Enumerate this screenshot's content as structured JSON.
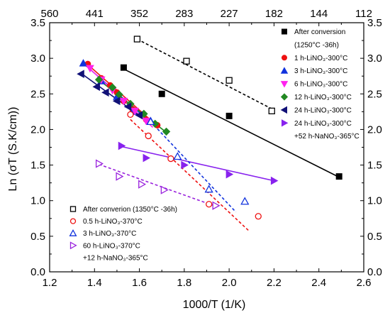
{
  "chart_data": {
    "type": "scatter",
    "xlabel": "1000/T (1/K)",
    "ylabel": "Ln (σT (S.K/cm))",
    "xlim": [
      1.2,
      2.6
    ],
    "ylim": [
      0.0,
      3.5
    ],
    "x_ticks": [
      "1.2",
      "1.4",
      "1.6",
      "1.8",
      "2.0",
      "2.2",
      "2.4",
      "2.6"
    ],
    "y_ticks": [
      "0.0",
      "0.5",
      "1.0",
      "1.5",
      "2.0",
      "2.5",
      "3.0",
      "3.5"
    ],
    "top_axis_ticks": [
      "560",
      "441",
      "352",
      "283",
      "227",
      "182",
      "144",
      "112"
    ],
    "right_axis_ticks": [
      "0.0",
      "0.5",
      "1.0",
      "1.5",
      "2.0",
      "2.5",
      "3.0",
      "3.5"
    ],
    "grid": false,
    "legends": [
      {
        "placement": "top-right",
        "entries": [
          {
            "label": "After conversion",
            "marker": "square",
            "filled": true,
            "color": "#000000"
          },
          {
            "label": "(1250°C -36h)",
            "marker": "none",
            "color": "#000000"
          },
          {
            "label": "1 h-LiNO₃-300°C",
            "marker": "circle",
            "filled": true,
            "color": "#ee1111"
          },
          {
            "label": "3 h-LiNO₃-300°C",
            "marker": "triangle-up",
            "filled": true,
            "color": "#1133dd"
          },
          {
            "label": "6 h-LiNO₃-300°C",
            "marker": "triangle-down",
            "filled": true,
            "color": "#ff22ee"
          },
          {
            "label": "12 h-LiNO₃-300°C",
            "marker": "diamond",
            "filled": true,
            "color": "#228822"
          },
          {
            "label": "24 h-LiNO₃-300°C",
            "marker": "triangle-left",
            "filled": true,
            "color": "#111177"
          },
          {
            "label": "24 h-LiNO₃-300°C",
            "marker": "triangle-right",
            "filled": true,
            "color": "#8822ee"
          },
          {
            "label": "+52 h-NaNO₃-365°C",
            "marker": "none",
            "color": "#000000"
          }
        ]
      },
      {
        "placement": "bottom-left",
        "entries": [
          {
            "label": "After converion (1350°C -36h)",
            "marker": "square",
            "filled": false,
            "color": "#000000"
          },
          {
            "label": "0.5 h-LiNO₃-370°C",
            "marker": "circle",
            "filled": false,
            "color": "#ee1111"
          },
          {
            "label": "3 h-LiNO₃-370°C",
            "marker": "triangle-up",
            "filled": false,
            "color": "#1133dd"
          },
          {
            "label": "60 h-LiNO₃-370°C",
            "marker": "triangle-right",
            "filled": false,
            "color": "#9922dd"
          },
          {
            "label": "+12 h-NaNO₃-365°C",
            "marker": "none",
            "color": "#000000"
          }
        ]
      }
    ],
    "series": [
      {
        "name": "After conversion (1250°C -36h)",
        "marker": "square",
        "filled": true,
        "color": "#000000",
        "dashed": false,
        "x": [
          1.53,
          1.7,
          2.0,
          2.49
        ],
        "y": [
          2.87,
          2.5,
          2.19,
          1.34
        ],
        "fit": [
          [
            1.53,
            2.85
          ],
          [
            2.49,
            1.33
          ]
        ]
      },
      {
        "name": "1 h-LiNO₃-300°C",
        "marker": "circle",
        "filled": true,
        "color": "#ee1111",
        "dashed": false,
        "x": [
          1.37,
          1.43,
          1.47,
          1.5,
          1.53,
          1.57,
          1.63,
          1.68
        ],
        "y": [
          2.92,
          2.72,
          2.62,
          2.52,
          2.4,
          2.28,
          2.14,
          2.06
        ],
        "fit": [
          [
            1.36,
            2.94
          ],
          [
            1.68,
            2.05
          ]
        ]
      },
      {
        "name": "3 h-LiNO₃-300°C",
        "marker": "triangle-up",
        "filled": true,
        "color": "#1133dd",
        "dashed": false,
        "x": [
          1.35,
          1.43,
          1.5,
          1.57,
          1.65
        ],
        "y": [
          2.93,
          2.68,
          2.46,
          2.25,
          2.12
        ],
        "fit": [
          [
            1.35,
            2.93
          ],
          [
            1.66,
            2.07
          ]
        ]
      },
      {
        "name": "6 h-LiNO₃-300°C",
        "marker": "triangle-down",
        "filled": true,
        "color": "#ff22ee",
        "dashed": false,
        "x": [
          1.38,
          1.43,
          1.48,
          1.53,
          1.58,
          1.63
        ],
        "y": [
          2.86,
          2.7,
          2.55,
          2.4,
          2.26,
          2.12
        ],
        "fit": [
          [
            1.37,
            2.88
          ],
          [
            1.66,
            2.03
          ]
        ]
      },
      {
        "name": "12 h-LiNO₃-300°C",
        "marker": "diamond",
        "filled": true,
        "color": "#228822",
        "dashed": false,
        "x": [
          1.42,
          1.48,
          1.51,
          1.56,
          1.62,
          1.67,
          1.72
        ],
        "y": [
          2.7,
          2.59,
          2.49,
          2.36,
          2.22,
          2.08,
          1.97
        ],
        "fit": [
          [
            1.41,
            2.72
          ],
          [
            1.72,
            1.96
          ]
        ]
      },
      {
        "name": "24 h-LiNO₃-300°C",
        "marker": "triangle-left",
        "filled": true,
        "color": "#111177",
        "dashed": false,
        "x": [
          1.34,
          1.41,
          1.45,
          1.5,
          1.55,
          1.6
        ],
        "y": [
          2.78,
          2.6,
          2.52,
          2.4,
          2.32,
          2.2
        ],
        "fit": [
          [
            1.34,
            2.79
          ],
          [
            1.65,
            2.08
          ]
        ]
      },
      {
        "name": "24 h-LiNO₃-300°C +52 h-NaNO₃-365°C",
        "marker": "triangle-right",
        "filled": true,
        "color": "#8822ee",
        "dashed": false,
        "x": [
          1.52,
          1.63,
          1.8,
          2.0,
          2.2
        ],
        "y": [
          1.77,
          1.6,
          1.5,
          1.37,
          1.28
        ],
        "fit": [
          [
            1.52,
            1.76
          ],
          [
            2.2,
            1.28
          ]
        ]
      },
      {
        "name": "After converion (1350°C -36h)",
        "marker": "square",
        "filled": false,
        "color": "#000000",
        "dashed": true,
        "x": [
          1.59,
          1.81,
          2.0,
          2.19
        ],
        "y": [
          3.27,
          2.96,
          2.69,
          2.26
        ],
        "fit": [
          [
            1.59,
            3.27
          ],
          [
            2.19,
            2.29
          ]
        ]
      },
      {
        "name": "0.5 h-LiNO₃-370°C",
        "marker": "circle",
        "filled": false,
        "color": "#ee1111",
        "dashed": true,
        "x": [
          1.56,
          1.64,
          1.74,
          1.91,
          2.13
        ],
        "y": [
          2.21,
          1.91,
          1.59,
          0.95,
          0.78
        ],
        "fit": [
          [
            1.56,
            2.14
          ],
          [
            2.09,
            0.57
          ]
        ]
      },
      {
        "name": "3 h-LiNO₃-370°C",
        "marker": "triangle-up",
        "filled": false,
        "color": "#1133dd",
        "dashed": true,
        "x": [
          1.65,
          1.77,
          1.91,
          2.07
        ],
        "y": [
          2.11,
          1.62,
          1.16,
          0.99
        ],
        "fit": [
          [
            1.65,
            2.11
          ],
          [
            2.03,
            0.84
          ]
        ]
      },
      {
        "name": "60 h-LiNO₃-370°C +12 h-NaNO₃-365°C",
        "marker": "triangle-right",
        "filled": false,
        "color": "#9922dd",
        "dashed": true,
        "x": [
          1.42,
          1.51,
          1.61,
          1.71,
          1.94
        ],
        "y": [
          1.52,
          1.34,
          1.23,
          1.15,
          0.93
        ],
        "fit": [
          [
            1.42,
            1.51
          ],
          [
            1.94,
            0.92
          ]
        ]
      }
    ]
  }
}
